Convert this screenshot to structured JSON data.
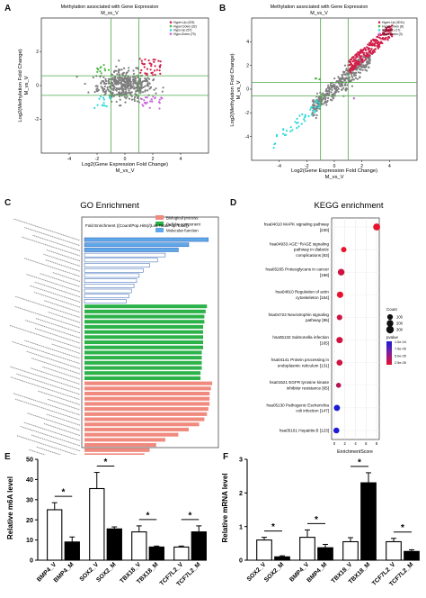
{
  "panels": {
    "A": {
      "label": "A"
    },
    "B": {
      "label": "B"
    },
    "C": {
      "label": "C"
    },
    "D": {
      "label": "D"
    },
    "E": {
      "label": "E"
    },
    "F": {
      "label": "F"
    }
  },
  "colors": {
    "hyper_up": "#d21f4b",
    "hyper_down": "#52b84a",
    "hypo_up": "#2fd9d9",
    "hypo_down": "#c86bd8",
    "nonsig": "#7f7f7f",
    "guide": "#4ca84a",
    "bio": "#f08a7e",
    "cell": "#2db24a",
    "mol": "#5ea8ea",
    "bar_outline": "#2a5db0"
  },
  "chart_data": [
    {
      "id": "A",
      "type": "scatter",
      "title": "Methylation associated with Gene Expression",
      "subtitle": "M_vs_V",
      "xlabel": "Log2(Gene Expression Fold Change)",
      "xlabel2": "M_vs_V",
      "ylabel": "Log2(Methylation Fold Change)",
      "ylabel2": "M_vs_V",
      "xlim": [
        -6,
        6
      ],
      "ylim": [
        -4,
        4
      ],
      "x_ticks": [
        -4,
        -2,
        0,
        2,
        4
      ],
      "y_ticks": [
        -2,
        0,
        2
      ],
      "hlines": [
        0.58,
        -0.58
      ],
      "vlines": [
        -1,
        1
      ],
      "legend_position": "top-right",
      "legend": [
        "Hyper-Up (203)",
        "Hyper-Down (32)",
        "Hypo-Up (57)",
        "Hypo-Down (79)"
      ],
      "clusters": [
        {
          "group": "nonsig",
          "cx": 0,
          "cy": 0,
          "sx": 1.8,
          "sy": 0.9,
          "n": 420
        },
        {
          "group": "hyper_up",
          "x": [
            1.0,
            2.6
          ],
          "y": [
            0.6,
            1.6
          ],
          "n": 40
        },
        {
          "group": "hyper_down",
          "x": [
            -2.0,
            -1.0
          ],
          "y": [
            0.6,
            1.3
          ],
          "n": 12
        },
        {
          "group": "hypo_up",
          "x": [
            -2.2,
            -1.0
          ],
          "y": [
            -1.4,
            -0.6
          ],
          "n": 14
        },
        {
          "group": "hypo_down",
          "x": [
            1.0,
            2.8
          ],
          "y": [
            -1.4,
            -0.6
          ],
          "n": 28
        }
      ]
    },
    {
      "id": "B",
      "type": "scatter",
      "title": "Methylation associated with Gene Expression",
      "subtitle": "M_vs_V",
      "xlabel": "Log2(Gene Expression Fold Change)",
      "xlabel2": "M_vs_V",
      "ylabel": "Log2(Methylation Fold Change)",
      "ylabel2": "M_vs_V",
      "xlim": [
        -6,
        6
      ],
      "ylim": [
        -6,
        6
      ],
      "x_ticks": [
        -4,
        -2,
        0,
        2,
        4
      ],
      "y_ticks": [
        -4,
        -2,
        0,
        2,
        4
      ],
      "hlines": [
        0.58,
        -0.58
      ],
      "vlines": [
        -1,
        1
      ],
      "legend_position": "top-right",
      "legend": [
        "Hyper-Up (3011)",
        "Hyper-Down (8)",
        "Hypo-Up (17)",
        "Hypo-Down (3)"
      ],
      "clusters": [
        {
          "group": "nonsig",
          "diag": true,
          "x": [
            -1.6,
            2.6
          ],
          "n": 380
        },
        {
          "group": "hyper_up",
          "diag": true,
          "x": [
            1.0,
            4.2
          ],
          "yoff": [
            0.2,
            1.4
          ],
          "n": 260
        },
        {
          "group": "hypo_up",
          "diag": true,
          "x": [
            -4.6,
            -1.0
          ],
          "yoff": [
            -0.6,
            0.4
          ],
          "n": 45
        },
        {
          "group": "hyper_down",
          "x": [
            -1.6,
            -1.0
          ],
          "y": [
            0.6,
            1.0
          ],
          "n": 3
        },
        {
          "group": "hypo_down",
          "x": [
            1.0,
            1.6
          ],
          "y": [
            -1.0,
            -0.6
          ],
          "n": 2
        }
      ]
    },
    {
      "id": "C",
      "type": "bar",
      "orientation": "horizontal",
      "title": "GO Enrichment",
      "xlabel": "Fold Enrichment ((Count/Pop.Hits)/(List.Total/Pop.Total))",
      "legend_position": "top-right",
      "legend": [
        "Biological process",
        "Cellular component",
        "Molecular function"
      ],
      "series": [
        {
          "name": "Molecular function",
          "color_key": "mol",
          "bar_outline": true,
          "values": [
            0.95,
            0.8,
            0.72,
            0.62,
            0.56,
            0.5,
            0.45,
            0.42,
            0.4,
            0.38,
            0.36,
            0.34,
            0.32
          ]
        },
        {
          "name": "Cellular component",
          "color_key": "cell",
          "values": [
            0.94,
            0.93,
            0.92,
            0.92,
            0.91,
            0.91,
            0.91,
            0.91,
            0.91,
            0.9,
            0.9,
            0.9,
            0.9,
            0.89,
            0.89
          ]
        },
        {
          "name": "Biological process",
          "color_key": "bio",
          "values": [
            0.98,
            0.97,
            0.96,
            0.96,
            0.96,
            0.95,
            0.94,
            0.92,
            0.88,
            0.8,
            0.72,
            0.62,
            0.55,
            0.5,
            0.46,
            0.43,
            0.4,
            0.38,
            0.34,
            0.3
          ]
        }
      ]
    },
    {
      "id": "D",
      "type": "scatter",
      "subtype": "dot",
      "title": "KEGG enrichment",
      "xlabel": "EnrichmentScore",
      "x_ticks": [
        "0",
        "2",
        "4",
        "6",
        "8"
      ],
      "xlim": [
        -0.5,
        8.5
      ],
      "categories": [
        "hsa04010 MAPK signaling pathway [230]",
        "hsa04933 AGE−RAGE signaling pathway in diabetic complications [83]",
        "hsa05205 Proteoglycans in cancer [198]",
        "hsa04810 Regulation of actin cytoskeleton [164]",
        "hsa04722 Neurotrophin signaling pathway [95]",
        "hsa05132 Salmonella infection [165]",
        "hsa04141 Protein processing in endoplasmic reticulum [131]",
        "hsa01521 EGFR tyrosine kinase inhibitor resistance [65]",
        "hsa05130 Pathogenic Escherichia coli infection [147]",
        "hsa05161 Hepatitis B [123]"
      ],
      "x": [
        8.0,
        1.8,
        1.3,
        1.1,
        1.0,
        1.0,
        1.0,
        0.8,
        0.5,
        0.4
      ],
      "count": [
        230,
        83,
        198,
        164,
        95,
        165,
        131,
        65,
        147,
        123
      ],
      "pvalue": [
        2e-05,
        2e-05,
        3e-05,
        2e-05,
        3e-05,
        3e-05,
        3e-05,
        4e-05,
        0.0001,
        0.0001
      ],
      "size_legend_title": "Count",
      "size_legend": [
        "100",
        "200",
        "300"
      ],
      "size_values": [
        100,
        200,
        300
      ],
      "color_legend_title": "pvalue",
      "color_legend": [
        "1.0e-04",
        "7.5e-05",
        "5.0e-05",
        "2.5e-05"
      ]
    },
    {
      "id": "E",
      "type": "bar",
      "ylabel": "Relative m6A level",
      "ylim": [
        0,
        50
      ],
      "y_ticks": [
        0,
        10,
        20,
        30,
        40,
        50
      ],
      "categories": [
        "BMP4_V",
        "BMP4_M",
        "SOX2_V",
        "SOX2_M",
        "TBX18_V",
        "TBX18_M",
        "TCF7L2_V",
        "TCF7L2_M"
      ],
      "values": [
        25,
        9,
        35.5,
        15.5,
        14,
        6.5,
        6.5,
        14
      ],
      "errors": [
        3.5,
        2.5,
        8,
        1,
        3,
        0.5,
        0.5,
        3
      ],
      "fill": [
        "white",
        "black",
        "white",
        "black",
        "white",
        "black",
        "white",
        "black"
      ],
      "significance": [
        {
          "pair": [
            0,
            1
          ],
          "label": "*"
        },
        {
          "pair": [
            2,
            3
          ],
          "label": "*"
        },
        {
          "pair": [
            4,
            5
          ],
          "label": "*"
        },
        {
          "pair": [
            6,
            7
          ],
          "label": "*"
        }
      ]
    },
    {
      "id": "F",
      "type": "bar",
      "ylabel": "Relative mRNA level",
      "ylim": [
        0,
        3
      ],
      "y_ticks": [
        0,
        1,
        2,
        3
      ],
      "categories": [
        "SOX2_V",
        "SOX2_M",
        "BMP4_V",
        "BMP4_M",
        "TBX18_V",
        "TBX18_M",
        "TCF7L2_V",
        "TCF7L2_M"
      ],
      "values": [
        0.6,
        0.1,
        0.68,
        0.37,
        0.55,
        2.3,
        0.55,
        0.26
      ],
      "errors": [
        0.08,
        0.03,
        0.22,
        0.1,
        0.12,
        0.3,
        0.1,
        0.05
      ],
      "fill": [
        "white",
        "black",
        "white",
        "black",
        "white",
        "black",
        "white",
        "black"
      ],
      "significance": [
        {
          "pair": [
            0,
            1
          ],
          "label": "*"
        },
        {
          "pair": [
            2,
            3
          ],
          "label": "*"
        },
        {
          "pair": [
            4,
            5
          ],
          "label": "*"
        },
        {
          "pair": [
            6,
            7
          ],
          "label": "*"
        }
      ]
    }
  ]
}
